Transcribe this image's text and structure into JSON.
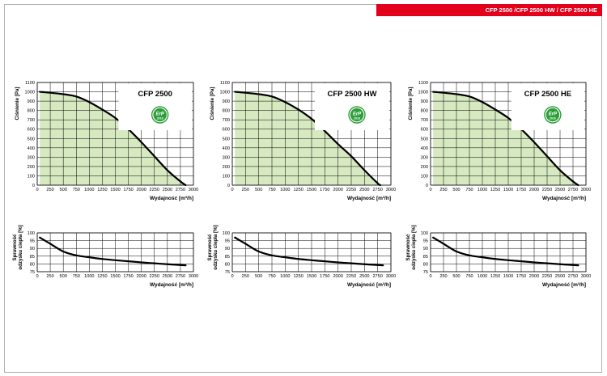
{
  "header": {
    "title": "CFP 2500 /CFP 2500 HW / CFP 2500 HE"
  },
  "colors": {
    "header_red": "#e2001a",
    "fill_green": "#d6e9c0",
    "curve": "#000000",
    "erp_green": "#2e9e3a"
  },
  "erp_badge": {
    "text": "ErP",
    "year": "2018"
  },
  "chart_data": [
    {
      "type": "area",
      "title": "CFP 2500",
      "xlabel": "Wydajność [m³/h]",
      "ylabel": "Ciśnienie [Pa]",
      "xlim": [
        0,
        3000
      ],
      "ylim": [
        0,
        1100
      ],
      "xticks": [
        "0",
        "250",
        "500",
        "750",
        "1000",
        "1250",
        "1500",
        "1750",
        "2000",
        "2250",
        "2500",
        "2750",
        "3000"
      ],
      "yticks": [
        "0",
        "100",
        "200",
        "300",
        "400",
        "500",
        "600",
        "700",
        "800",
        "900",
        "1000",
        "1100"
      ],
      "grid": true,
      "x": [
        50,
        250,
        500,
        750,
        1000,
        1250,
        1500,
        1750,
        2000,
        2250,
        2500,
        2750,
        2850
      ],
      "y": [
        1000,
        990,
        975,
        950,
        890,
        810,
        720,
        600,
        460,
        310,
        160,
        40,
        0
      ]
    },
    {
      "type": "area",
      "title": "CFP 2500 HW",
      "xlabel": "Wydajność [m³/h]",
      "ylabel": "Ciśnienie [Pa]",
      "xlim": [
        0,
        3000
      ],
      "ylim": [
        0,
        1100
      ],
      "xticks": [
        "0",
        "250",
        "500",
        "750",
        "1000",
        "1250",
        "1500",
        "1750",
        "2000",
        "2250",
        "2500",
        "2750",
        "3000"
      ],
      "yticks": [
        "0",
        "100",
        "200",
        "300",
        "400",
        "500",
        "600",
        "700",
        "800",
        "900",
        "1000",
        "1100"
      ],
      "grid": true,
      "x": [
        50,
        250,
        500,
        750,
        1000,
        1250,
        1500,
        1750,
        2000,
        2250,
        2500,
        2750,
        2800
      ],
      "y": [
        1000,
        990,
        975,
        950,
        890,
        810,
        710,
        580,
        440,
        310,
        160,
        20,
        0
      ]
    },
    {
      "type": "area",
      "title": "CFP 2500 HE",
      "xlabel": "Wydajność [m³/h]",
      "ylabel": "Ciśnienie [Pa]",
      "xlim": [
        0,
        3000
      ],
      "ylim": [
        0,
        1100
      ],
      "xticks": [
        "0",
        "250",
        "500",
        "750",
        "1000",
        "1250",
        "1500",
        "1750",
        "2000",
        "2250",
        "2500",
        "2750",
        "3000"
      ],
      "yticks": [
        "0",
        "100",
        "200",
        "300",
        "400",
        "500",
        "600",
        "700",
        "800",
        "900",
        "1000",
        "1100"
      ],
      "grid": true,
      "x": [
        50,
        250,
        500,
        750,
        1000,
        1250,
        1500,
        1750,
        2000,
        2250,
        2500,
        2750,
        2850
      ],
      "y": [
        1000,
        990,
        975,
        950,
        890,
        810,
        720,
        600,
        460,
        310,
        160,
        40,
        0
      ]
    },
    {
      "type": "line",
      "xlabel": "Wydajność [m³/h]",
      "ylabel": "Sprawność odzysku ciepła [%]",
      "xlim": [
        0,
        3000
      ],
      "ylim": [
        75,
        100
      ],
      "xticks": [
        "0",
        "250",
        "500",
        "750",
        "1000",
        "1250",
        "1500",
        "1750",
        "2000",
        "2250",
        "2500",
        "2750",
        "3000"
      ],
      "yticks": [
        "75",
        "80",
        "85",
        "90",
        "95",
        "100"
      ],
      "grid": true,
      "x": [
        50,
        250,
        500,
        750,
        1000,
        1250,
        1500,
        1750,
        2000,
        2250,
        2500,
        2750,
        2850
      ],
      "y": [
        97,
        93,
        88,
        85.5,
        84.3,
        83.2,
        82.4,
        81.7,
        81,
        80.4,
        79.8,
        79.3,
        79.1
      ]
    },
    {
      "type": "line",
      "xlabel": "Wydajność [m³/h]",
      "ylabel": "Sprawność odzysku ciepła [%]",
      "xlim": [
        0,
        3000
      ],
      "ylim": [
        75,
        100
      ],
      "xticks": [
        "0",
        "250",
        "500",
        "750",
        "1000",
        "1250",
        "1500",
        "1750",
        "2000",
        "2250",
        "2500",
        "2750",
        "3000"
      ],
      "yticks": [
        "75",
        "80",
        "85",
        "90",
        "95",
        "100"
      ],
      "grid": true,
      "x": [
        50,
        250,
        500,
        750,
        1000,
        1250,
        1500,
        1750,
        2000,
        2250,
        2500,
        2750,
        2850
      ],
      "y": [
        97,
        93,
        88,
        85.5,
        84.3,
        83.2,
        82.4,
        81.7,
        81,
        80.4,
        79.8,
        79.3,
        79.1
      ]
    },
    {
      "type": "line",
      "xlabel": "Wydajność [m³/h]",
      "ylabel": "Sprawność odzysku ciepła [%]",
      "xlim": [
        0,
        3000
      ],
      "ylim": [
        75,
        100
      ],
      "xticks": [
        "0",
        "250",
        "500",
        "750",
        "1000",
        "1250",
        "1500",
        "1750",
        "2000",
        "2250",
        "2500",
        "2750",
        "3000"
      ],
      "yticks": [
        "75",
        "80",
        "85",
        "90",
        "95",
        "100"
      ],
      "grid": true,
      "x": [
        50,
        250,
        500,
        750,
        1000,
        1250,
        1500,
        1750,
        2000,
        2250,
        2500,
        2750,
        2850
      ],
      "y": [
        97,
        93,
        88,
        85.5,
        84.3,
        83.2,
        82.4,
        81.7,
        81,
        80.4,
        79.8,
        79.3,
        79.1
      ]
    }
  ]
}
